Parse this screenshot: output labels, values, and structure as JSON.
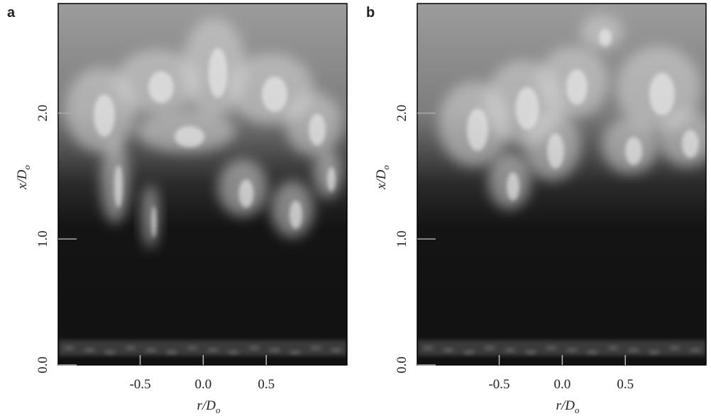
{
  "panels": [
    {
      "label": "a",
      "xlabel": {
        "main": "r/D",
        "sub": "o"
      },
      "ylabel": {
        "main": "x/D",
        "sub": "o"
      },
      "xlim": [
        -1.15,
        1.14
      ],
      "ylim": [
        0,
        2.87
      ],
      "xticks": [
        -0.5,
        {
          "value": 0,
          "label": "0.0"
        },
        0.5
      ],
      "yticks": [
        {
          "value": 0,
          "label": "0.0"
        },
        {
          "value": 1,
          "label": "1.0"
        },
        {
          "value": 2,
          "label": "2.0"
        }
      ]
    },
    {
      "label": "b",
      "xlabel": {
        "main": "r/D",
        "sub": "o"
      },
      "ylabel": {
        "main": "x/D",
        "sub": "o"
      },
      "xlim": [
        -1.15,
        1.14
      ],
      "ylim": [
        0,
        2.87
      ],
      "xticks": [
        -0.5,
        {
          "value": 0,
          "label": "0.0"
        },
        0.5
      ],
      "yticks": [
        {
          "value": 0,
          "label": "0.0"
        },
        {
          "value": 1,
          "label": "1.0"
        },
        {
          "value": 2,
          "label": "2.0"
        }
      ]
    }
  ]
}
